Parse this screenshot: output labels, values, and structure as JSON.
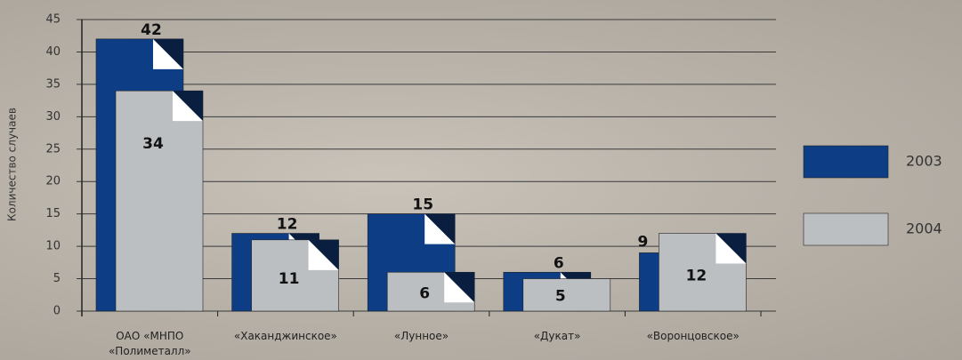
{
  "chart_data": {
    "type": "bar",
    "y_label": "Количество случаев",
    "categories": [
      "ОАО «МНПО «Полиметалл»",
      "«Хаканджинское»",
      "«Лунное»",
      "«Дукат»",
      "«Воронцовское»"
    ],
    "series": [
      {
        "name": "2003",
        "color": "#0d3d85",
        "values": [
          42,
          12,
          15,
          6,
          9
        ]
      },
      {
        "name": "2004",
        "color": "#bcbfc2",
        "values": [
          34,
          11,
          6,
          5,
          12
        ]
      }
    ],
    "ylim": [
      0,
      45
    ],
    "yticks": [
      0,
      5,
      10,
      15,
      20,
      25,
      30,
      35,
      40,
      45
    ],
    "grid": true
  }
}
